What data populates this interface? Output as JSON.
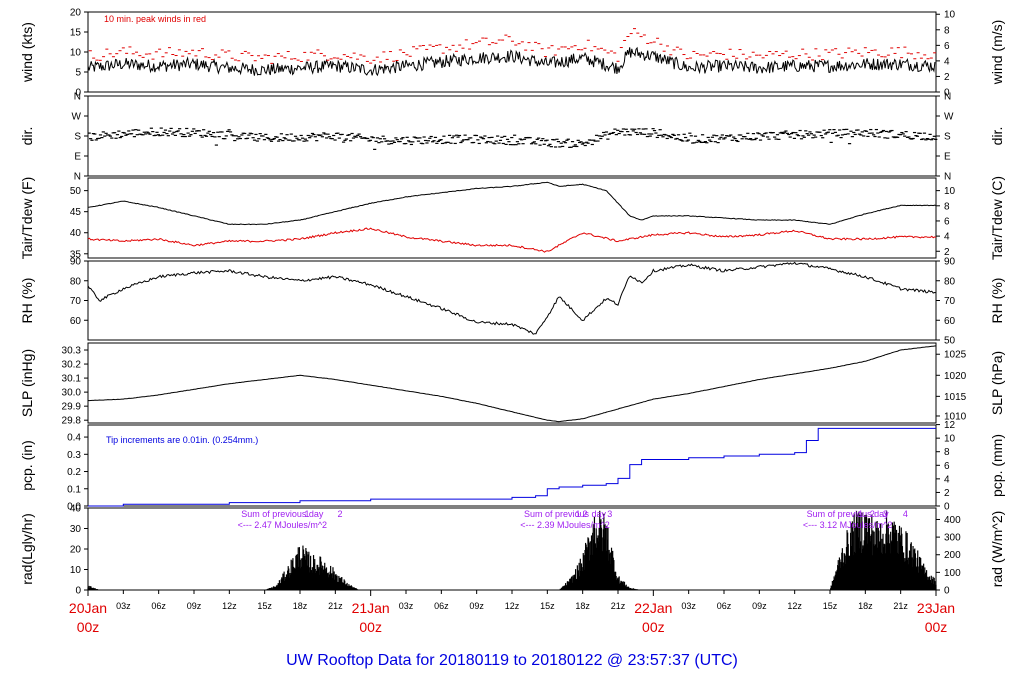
{
  "title": "UW Rooftop Data for 20180119  to  20180122 @ 23:57:37  (UTC)",
  "colors": {
    "black": "#000000",
    "red": "#e00000",
    "blue": "#0000e0",
    "purple": "#a020f0",
    "title": "#0000e0"
  },
  "x_axis": {
    "hours_total": 72,
    "hour_ticks": [
      {
        "h": 3,
        "label": "03z"
      },
      {
        "h": 6,
        "label": "06z"
      },
      {
        "h": 9,
        "label": "09z"
      },
      {
        "h": 12,
        "label": "12z"
      },
      {
        "h": 15,
        "label": "15z"
      },
      {
        "h": 18,
        "label": "18z"
      },
      {
        "h": 21,
        "label": "21z"
      },
      {
        "h": 27,
        "label": "03z"
      },
      {
        "h": 30,
        "label": "06z"
      },
      {
        "h": 33,
        "label": "09z"
      },
      {
        "h": 36,
        "label": "12z"
      },
      {
        "h": 39,
        "label": "15z"
      },
      {
        "h": 42,
        "label": "18z"
      },
      {
        "h": 45,
        "label": "21z"
      },
      {
        "h": 51,
        "label": "03z"
      },
      {
        "h": 54,
        "label": "06z"
      },
      {
        "h": 57,
        "label": "09z"
      },
      {
        "h": 60,
        "label": "12z"
      },
      {
        "h": 63,
        "label": "15z"
      },
      {
        "h": 66,
        "label": "18z"
      },
      {
        "h": 69,
        "label": "21z"
      }
    ],
    "day_labels": [
      {
        "h": 0,
        "day": "20Jan",
        "time": "00z"
      },
      {
        "h": 24,
        "day": "21Jan",
        "time": "00z"
      },
      {
        "h": 48,
        "day": "22Jan",
        "time": "00z"
      },
      {
        "h": 72,
        "day": "23Jan",
        "time": "00z"
      }
    ]
  },
  "chart_data": [
    {
      "id": "wind",
      "type": "line",
      "ylabel": "wind (kts)",
      "ylabel_right": "wind (m/s)",
      "ylim": [
        0,
        20
      ],
      "yticks": [
        0,
        5,
        10,
        15,
        20
      ],
      "right_ticks": [
        {
          "label": "0",
          "v": 0
        },
        {
          "label": "2",
          "v": 3.89
        },
        {
          "label": "4",
          "v": 7.78
        },
        {
          "label": "6",
          "v": 11.66
        },
        {
          "label": "8",
          "v": 15.55
        },
        {
          "label": "10",
          "v": 19.44
        }
      ],
      "annotation": "10 min. peak winds in red",
      "series": [
        {
          "name": "wind speed",
          "color": "black",
          "x": [
            0,
            3,
            6,
            9,
            12,
            15,
            18,
            21,
            24,
            27,
            30,
            33,
            36,
            39,
            42,
            45,
            46,
            48,
            50,
            51,
            54,
            57,
            60,
            63,
            66,
            69,
            72
          ],
          "values": [
            6,
            7,
            6.5,
            7,
            6,
            5.5,
            6,
            6.5,
            5.5,
            6.5,
            7.5,
            8.5,
            9,
            7,
            8.5,
            6,
            10,
            9,
            7,
            6,
            6.5,
            6,
            6.5,
            6.5,
            7,
            7,
            6.5
          ]
        },
        {
          "name": "10 min peak",
          "color": "red",
          "x": [
            0,
            3,
            6,
            9,
            12,
            15,
            18,
            21,
            24,
            27,
            30,
            33,
            36,
            39,
            42,
            45,
            46,
            48,
            50,
            51,
            54,
            57,
            60,
            63,
            66,
            69,
            72
          ],
          "values": [
            9,
            10,
            9.5,
            10,
            9,
            8.5,
            9,
            9.5,
            8.5,
            9.5,
            11,
            12,
            13,
            10,
            12,
            9,
            15,
            13,
            10,
            9,
            9.5,
            9,
            9.5,
            9.5,
            10,
            10,
            9.5
          ]
        }
      ]
    },
    {
      "id": "dir",
      "type": "scatter",
      "ylabel": "dir.",
      "ylabel_right": "dir.",
      "ylim": [
        0,
        360
      ],
      "yticks": [
        {
          "label": "N",
          "v": 0
        },
        {
          "label": "E",
          "v": 90
        },
        {
          "label": "S",
          "v": 180
        },
        {
          "label": "W",
          "v": 270
        },
        {
          "label": "N",
          "v": 360
        }
      ],
      "series": [
        {
          "name": "wind direction",
          "color": "black",
          "x": [
            0,
            3,
            6,
            9,
            12,
            15,
            18,
            21,
            24,
            27,
            30,
            33,
            36,
            39,
            42,
            45,
            48,
            51,
            54,
            57,
            60,
            63,
            66,
            69,
            72
          ],
          "values": [
            175,
            190,
            200,
            195,
            185,
            170,
            175,
            180,
            165,
            160,
            165,
            165,
            160,
            150,
            145,
            200,
            195,
            165,
            170,
            180,
            185,
            190,
            195,
            185,
            180
          ]
        }
      ]
    },
    {
      "id": "temp",
      "type": "line",
      "ylabel": "Tair/Tdew (F)",
      "ylabel_right": "Tair/Tdew (C)",
      "ylim": [
        34,
        53
      ],
      "yticks": [
        35,
        40,
        45,
        50
      ],
      "right_ticks": [
        {
          "label": "2",
          "v": 35.6
        },
        {
          "label": "4",
          "v": 39.2
        },
        {
          "label": "6",
          "v": 42.8
        },
        {
          "label": "8",
          "v": 46.4
        },
        {
          "label": "10",
          "v": 50
        }
      ],
      "series": [
        {
          "name": "Tair",
          "color": "black",
          "x": [
            0,
            3,
            6,
            9,
            12,
            15,
            18,
            21,
            24,
            27,
            30,
            33,
            36,
            39,
            40,
            42,
            44,
            45,
            46,
            47,
            48,
            51,
            54,
            57,
            60,
            63,
            66,
            69,
            72
          ],
          "values": [
            46,
            47.5,
            46,
            44,
            42,
            42,
            43,
            45,
            47,
            48.5,
            49.5,
            50.5,
            51,
            52,
            51,
            51.5,
            50,
            47,
            44,
            43,
            44,
            44,
            43.5,
            43,
            43,
            42,
            44.5,
            46.5,
            46.5
          ]
        },
        {
          "name": "Tdew",
          "color": "red",
          "x": [
            0,
            3,
            6,
            9,
            12,
            15,
            18,
            21,
            24,
            27,
            30,
            33,
            36,
            39,
            42,
            45,
            48,
            51,
            54,
            57,
            60,
            63,
            66,
            69,
            72
          ],
          "values": [
            38.5,
            38,
            38.5,
            37,
            38,
            38,
            38.5,
            40,
            41,
            39,
            38,
            37,
            37,
            35.5,
            40,
            38,
            39.5,
            40,
            39,
            39.5,
            40.5,
            38.5,
            38.5,
            39,
            39
          ]
        }
      ]
    },
    {
      "id": "rh",
      "type": "line",
      "ylabel": "RH (%)",
      "ylabel_right": "RH (%)",
      "ylim": [
        50,
        90
      ],
      "yticks": [
        60,
        70,
        80,
        90
      ],
      "right_yticks": [
        50,
        60,
        70,
        80,
        90
      ],
      "series": [
        {
          "name": "RH",
          "color": "black",
          "x": [
            0,
            1,
            3,
            6,
            9,
            12,
            15,
            18,
            21,
            24,
            27,
            30,
            33,
            36,
            38,
            39,
            40,
            42,
            44,
            45,
            46,
            47,
            48,
            51,
            54,
            57,
            60,
            63,
            66,
            69,
            72
          ],
          "values": [
            77,
            70,
            76,
            82,
            84,
            85,
            82,
            80,
            82,
            78,
            72,
            66,
            59,
            58,
            53,
            62,
            72,
            60,
            71,
            68,
            83,
            79,
            85,
            88,
            85,
            87,
            89,
            86,
            82,
            76,
            74
          ]
        }
      ]
    },
    {
      "id": "slp",
      "type": "line",
      "ylabel": "SLP (inHg)",
      "ylabel_right": "SLP (hPa)",
      "ylim": [
        29.78,
        30.35
      ],
      "yticks": [
        29.8,
        29.9,
        30.0,
        30.1,
        30.2,
        30.3
      ],
      "right_ticks": [
        {
          "label": "1010",
          "v": 29.83
        },
        {
          "label": "1015",
          "v": 29.97
        },
        {
          "label": "1020",
          "v": 30.12
        },
        {
          "label": "1025",
          "v": 30.27
        }
      ],
      "series": [
        {
          "name": "SLP",
          "color": "black",
          "x": [
            0,
            3,
            6,
            9,
            12,
            15,
            18,
            21,
            24,
            27,
            30,
            33,
            36,
            38,
            39,
            40,
            42,
            45,
            48,
            51,
            54,
            57,
            60,
            63,
            66,
            69,
            72
          ],
          "values": [
            29.94,
            29.95,
            29.98,
            30.02,
            30.06,
            30.09,
            30.12,
            30.09,
            30.05,
            30.01,
            29.97,
            29.92,
            29.86,
            29.82,
            29.8,
            29.79,
            29.81,
            29.88,
            29.95,
            29.99,
            30.04,
            30.09,
            30.13,
            30.17,
            30.22,
            30.3,
            30.33
          ]
        }
      ]
    },
    {
      "id": "pcp",
      "type": "area",
      "ylabel": "pcp. (in)",
      "ylabel_right": "pcp. (mm)",
      "ylim": [
        0,
        0.47
      ],
      "yticks": [
        0.0,
        0.1,
        0.2,
        0.3,
        0.4
      ],
      "right_ticks": [
        {
          "label": "0",
          "v": 0
        },
        {
          "label": "2",
          "v": 0.0787
        },
        {
          "label": "4",
          "v": 0.1575
        },
        {
          "label": "6",
          "v": 0.2362
        },
        {
          "label": "8",
          "v": 0.315
        },
        {
          "label": "10",
          "v": 0.3937
        },
        {
          "label": "12",
          "v": 0.4724
        }
      ],
      "annotation": "Tip increments are 0.01in. (0.254mm.)",
      "series": [
        {
          "name": "cumulative precip",
          "color": "blue",
          "x": [
            0,
            3,
            12,
            18,
            24,
            36,
            38,
            39,
            40,
            42,
            44,
            45,
            46,
            47,
            48,
            51,
            54,
            57,
            60,
            61,
            62,
            72
          ],
          "values": [
            0,
            0.01,
            0.02,
            0.03,
            0.04,
            0.05,
            0.06,
            0.1,
            0.11,
            0.12,
            0.13,
            0.16,
            0.24,
            0.27,
            0.27,
            0.28,
            0.29,
            0.3,
            0.31,
            0.38,
            0.45,
            0.45
          ]
        }
      ]
    },
    {
      "id": "rad",
      "type": "area",
      "ylabel": "rad(Lgly/hr)",
      "ylabel_right": "rad (W/m^2)",
      "ylim": [
        0,
        40
      ],
      "yticks": [
        0,
        10,
        20,
        30,
        40
      ],
      "right_ticks": [
        {
          "label": "0",
          "v": 0
        },
        {
          "label": "100",
          "v": 8.6
        },
        {
          "label": "200",
          "v": 17.2
        },
        {
          "label": "300",
          "v": 25.8
        },
        {
          "label": "400",
          "v": 34.4
        }
      ],
      "annotations": [
        {
          "h": 16.5,
          "lines": [
            "Sum of previous day",
            "<--- 2.47 MJoules/m^2"
          ]
        },
        {
          "h": 40.5,
          "lines": [
            "Sum of previous day",
            "<--- 2.39 MJoules/m^2"
          ]
        },
        {
          "h": 64.5,
          "lines": [
            "Sum of previous day",
            "<--- 3.12 MJoules/m^2"
          ]
        }
      ],
      "markers": [
        {
          "h": 18.6,
          "label": "1"
        },
        {
          "h": 21.4,
          "label": "2"
        },
        {
          "h": 41.6,
          "label": "1"
        },
        {
          "h": 42.2,
          "label": "2"
        },
        {
          "h": 44.3,
          "label": "3"
        },
        {
          "h": 65.6,
          "label": "1"
        },
        {
          "h": 66.6,
          "label": "2"
        },
        {
          "h": 67.7,
          "label": "3"
        },
        {
          "h": 69.4,
          "label": "4"
        }
      ],
      "series": [
        {
          "name": "solar radiation",
          "color": "black",
          "x": [
            0,
            0.5,
            1,
            15,
            16,
            17,
            18,
            19,
            20,
            21,
            22,
            23,
            24,
            40,
            41,
            42,
            43,
            44,
            45,
            46,
            47,
            48,
            63,
            64,
            65,
            66,
            67,
            68,
            69,
            70,
            71,
            72
          ],
          "values": [
            2,
            1,
            0,
            0,
            2,
            10,
            19,
            14,
            13,
            8,
            3,
            0,
            0,
            0,
            5,
            14,
            33,
            30,
            6,
            1,
            0,
            0,
            0,
            18,
            30,
            34,
            28,
            32,
            26,
            20,
            10,
            4
          ]
        }
      ]
    }
  ]
}
